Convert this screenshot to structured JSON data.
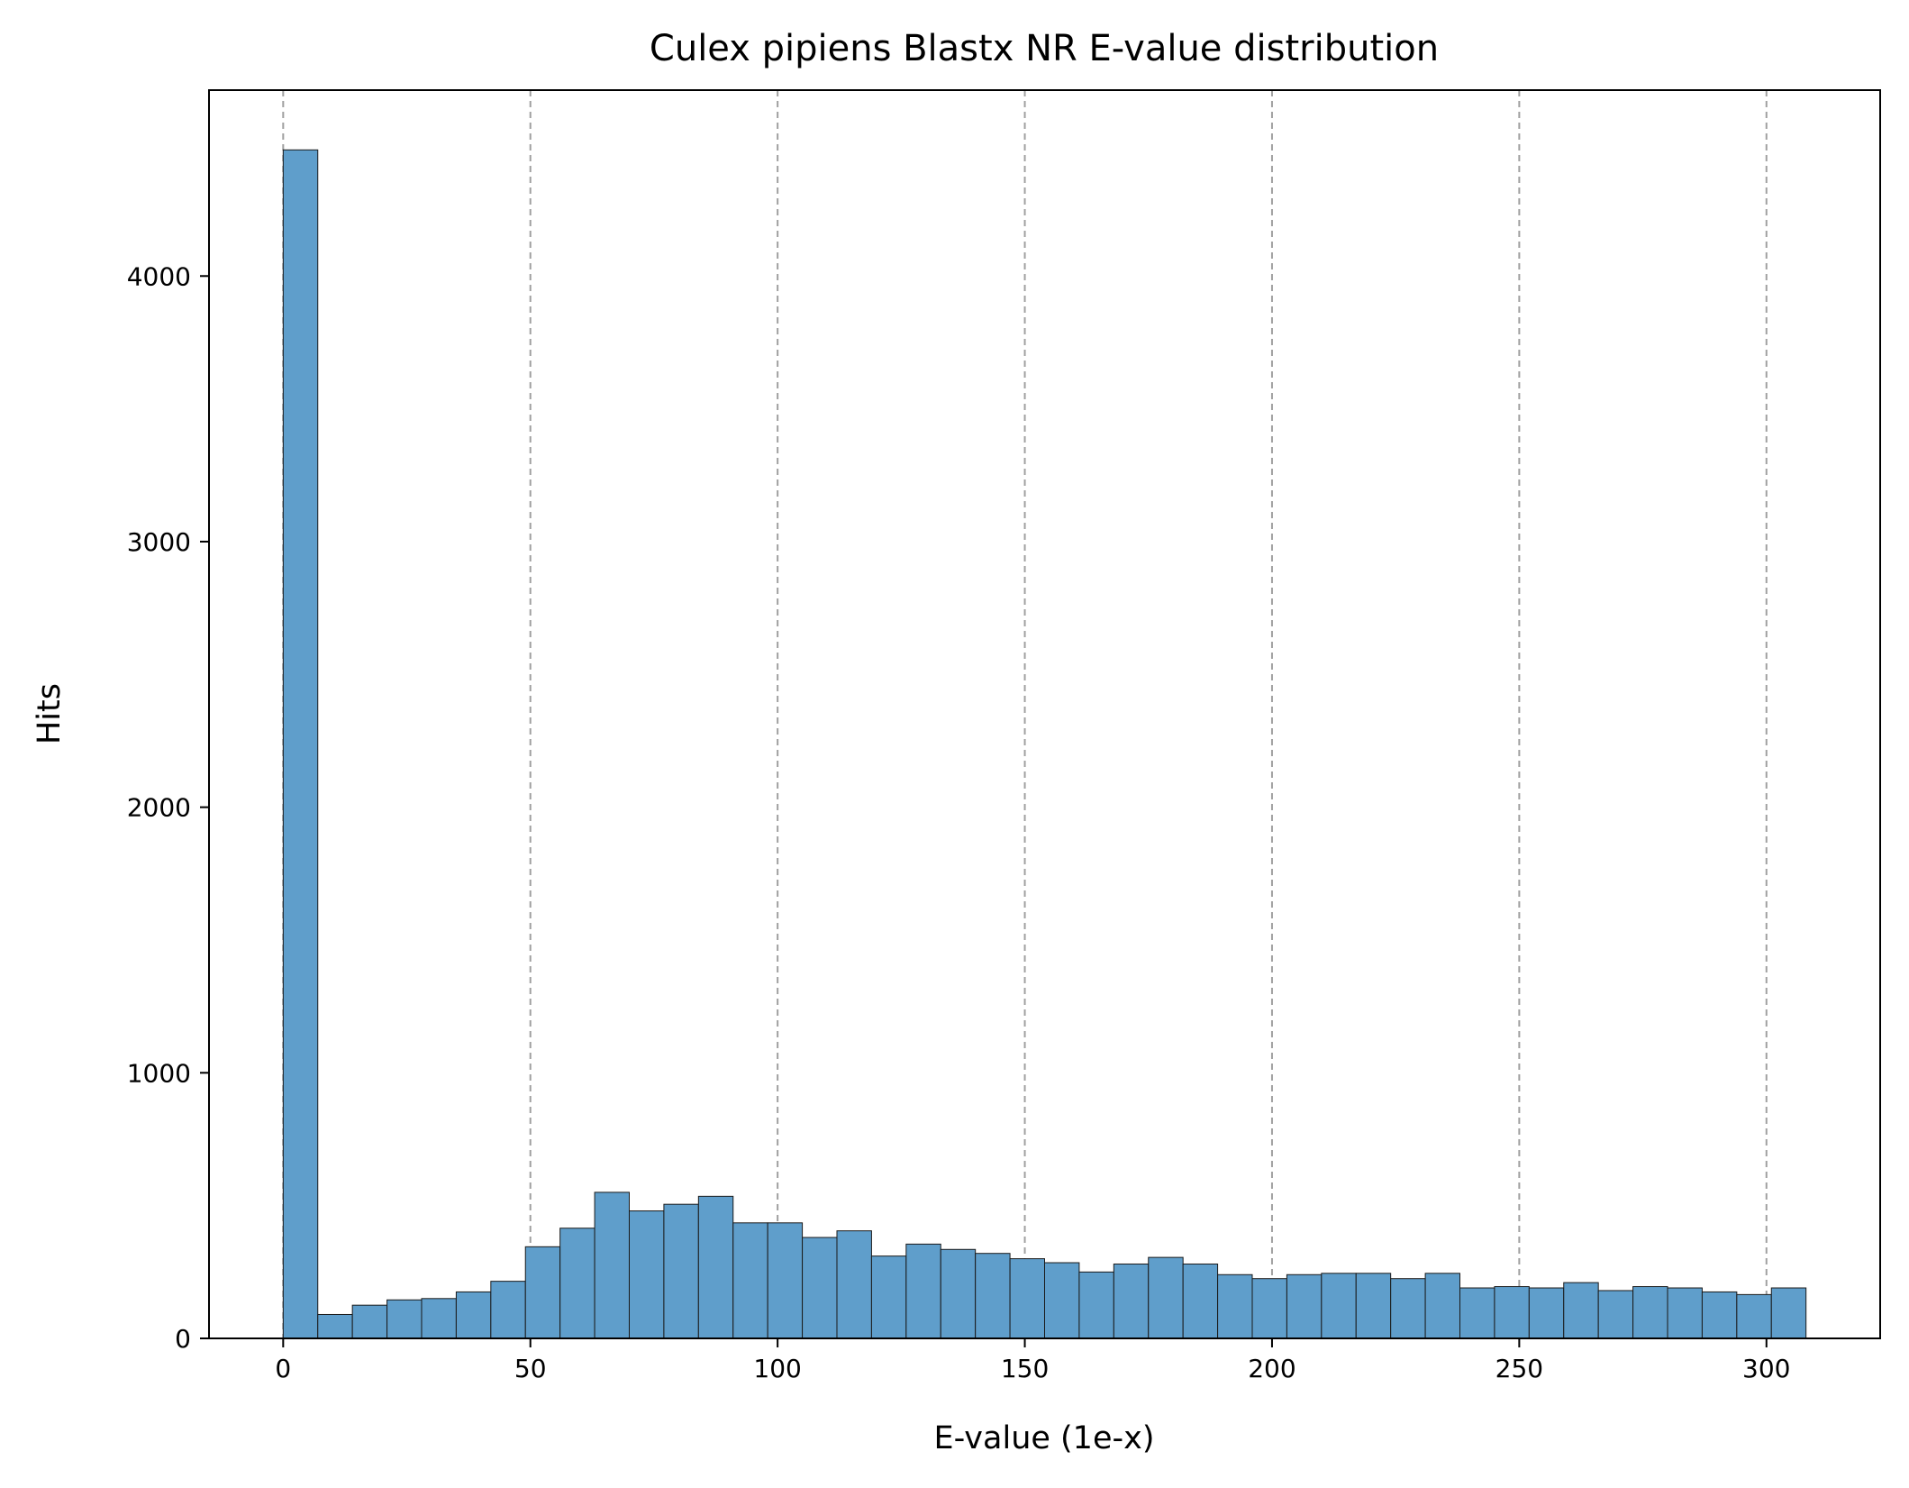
{
  "chart_data": {
    "type": "bar",
    "title": "Culex pipiens Blastx NR E-value distribution",
    "xlabel": "E-value (1e-x)",
    "ylabel": "Hits",
    "xlim": [
      -15,
      323
    ],
    "ylim": [
      0,
      4700
    ],
    "xticks": [
      0,
      50,
      100,
      150,
      200,
      250,
      300
    ],
    "yticks": [
      0,
      1000,
      2000,
      3000,
      4000
    ],
    "grid": "x-axis dashed",
    "bin_start": 0,
    "bin_width": 7,
    "bar_color": "#5f9ecb",
    "values": [
      4475,
      90,
      125,
      145,
      150,
      175,
      215,
      345,
      415,
      550,
      480,
      505,
      535,
      435,
      435,
      380,
      405,
      310,
      355,
      335,
      320,
      300,
      285,
      250,
      280,
      305,
      280,
      240,
      225,
      240,
      245,
      245,
      225,
      245,
      190,
      195,
      190,
      210,
      180,
      195,
      190,
      175,
      165,
      190
    ]
  }
}
